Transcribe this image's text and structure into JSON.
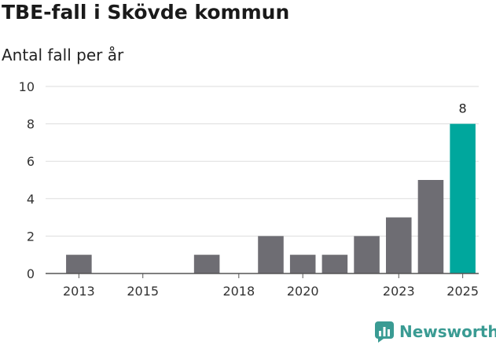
{
  "header": {
    "title": "TBE-fall i Skövde kommun",
    "subtitle": "Antal fall per år"
  },
  "brand": {
    "name": "Newsworthy",
    "icon": "newsworthy-logo-icon",
    "color": "#3a9b93"
  },
  "colors": {
    "bar": "#6e6d73",
    "highlight": "#00a79d",
    "grid": "#dddddd",
    "axis": "#555555"
  },
  "chart_data": {
    "type": "bar",
    "title": "TBE-fall i Skövde kommun",
    "subtitle": "Antal fall per år",
    "x": [
      2013,
      2014,
      2015,
      2016,
      2017,
      2018,
      2019,
      2020,
      2021,
      2022,
      2023,
      2024,
      2025
    ],
    "values": [
      1,
      0,
      0,
      0,
      1,
      0,
      2,
      1,
      1,
      2,
      3,
      5,
      8
    ],
    "highlight_index": 12,
    "data_labels": [
      {
        "index": 12,
        "text": "8"
      }
    ],
    "xticks": [
      2013,
      2015,
      2018,
      2020,
      2023,
      2025
    ],
    "yticks": [
      0,
      2,
      4,
      6,
      8,
      10
    ],
    "ylim": [
      0,
      10
    ],
    "xlabel": "",
    "ylabel": "",
    "grid": true,
    "legend": "none"
  }
}
